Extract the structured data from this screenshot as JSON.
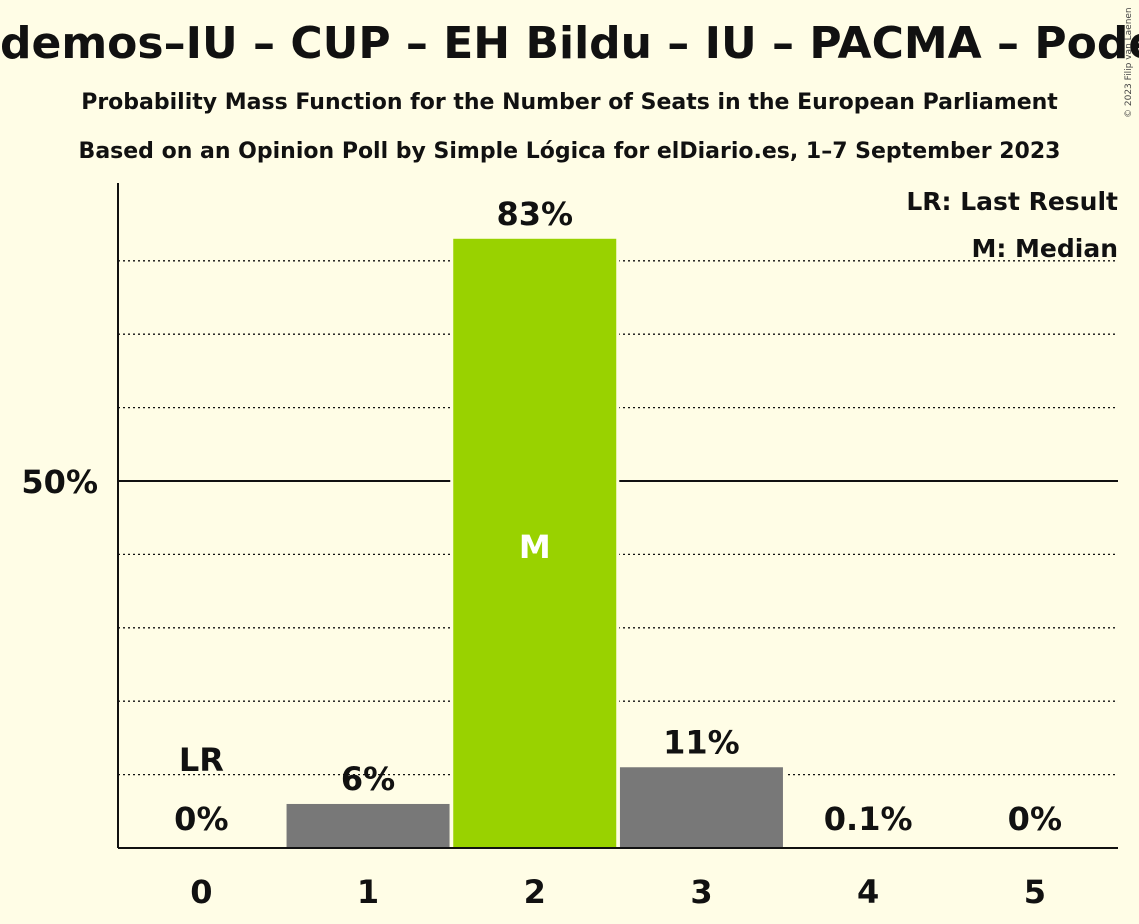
{
  "chart_data": {
    "type": "bar",
    "title": "demos–IU – CUP – EH Bildu – IU – PACMA – Podemos –",
    "subtitle1": "Probability Mass Function for the Number of Seats in the European Parliament",
    "subtitle2": "Based on an Opinion Poll by Simple Lógica for elDiario.es, 1–7 September 2023",
    "copyright": "© 2023 Filip van Laenen",
    "categories": [
      "0",
      "1",
      "2",
      "3",
      "4",
      "5"
    ],
    "values": [
      0,
      6,
      83,
      11,
      0.1,
      0
    ],
    "value_labels": [
      "0%",
      "6%",
      "83%",
      "11%",
      "0.1%",
      "0%"
    ],
    "median_index": 2,
    "median_marker": "M",
    "last_result_index": 0,
    "last_result_marker": "LR",
    "ylim": [
      0,
      90
    ],
    "y_tick_label": "50%",
    "y_tick_value": 50,
    "gridlines": [
      10,
      20,
      30,
      40,
      60,
      70,
      80
    ],
    "legend": {
      "placement": "top-right",
      "lr": "LR: Last Result",
      "m": "M: Median"
    },
    "colors": {
      "bar": "#787878",
      "median_bar": "#99D200",
      "background": "#FFFDE6",
      "text": "#111111"
    }
  }
}
